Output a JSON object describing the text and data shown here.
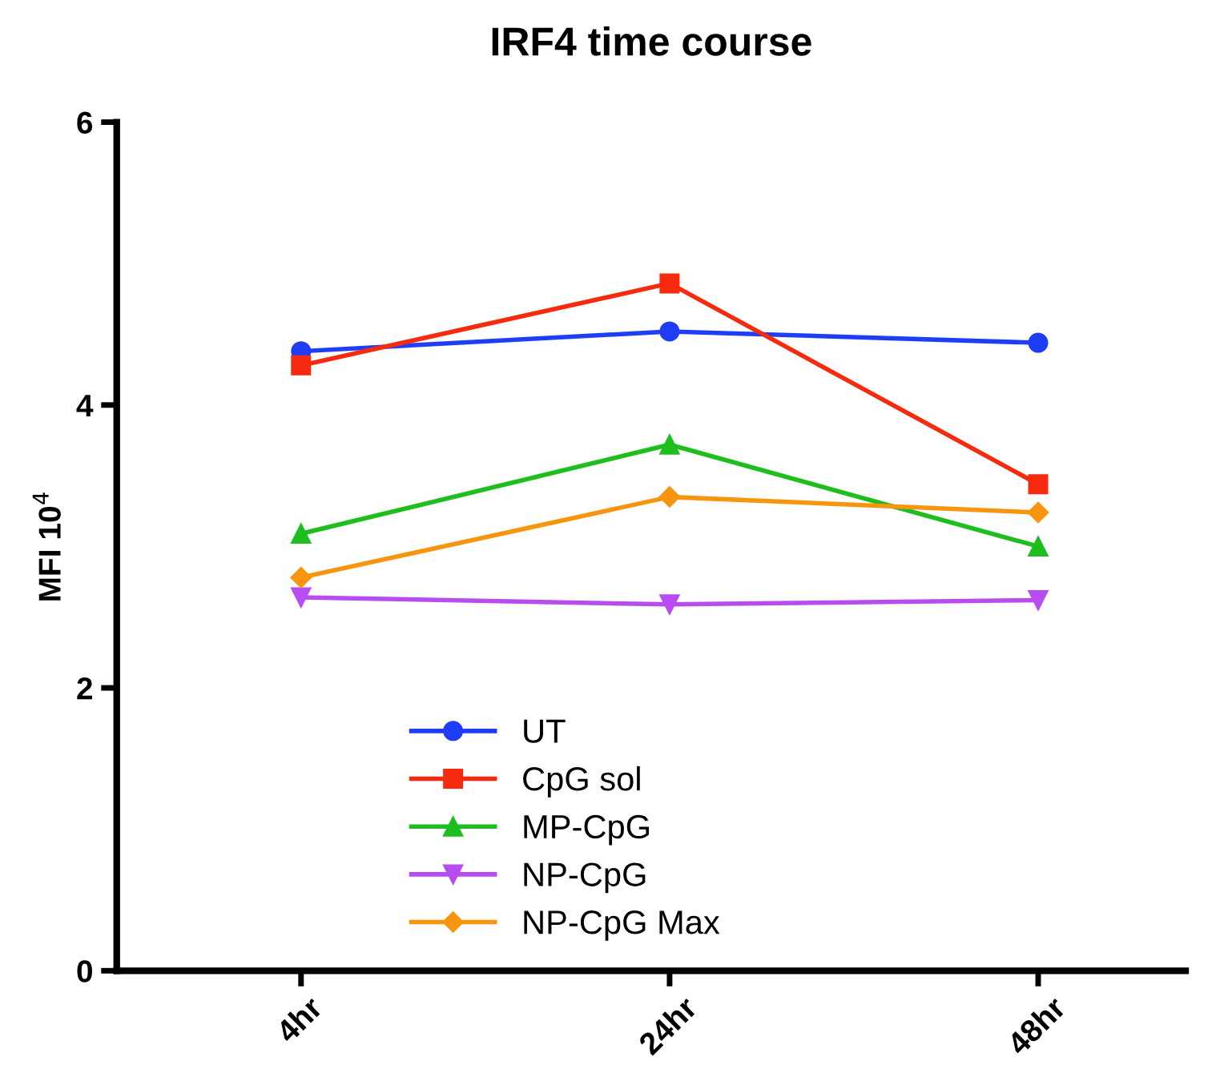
{
  "chart_data": {
    "type": "line",
    "title": "IRF4 time course",
    "ylabel": "MFI 10$^{4}$",
    "categories": [
      "4hr",
      "24hr",
      "48hr"
    ],
    "series": [
      {
        "name": "UT",
        "color": "#1f3df5",
        "values": [
          4.38,
          4.52,
          4.44
        ],
        "marker": "circle"
      },
      {
        "name": "CpG sol",
        "color": "#f52a0f",
        "values": [
          4.28,
          4.86,
          3.44
        ],
        "marker": "square"
      },
      {
        "name": "MP-CpG",
        "color": "#1dbe1d",
        "values": [
          3.09,
          3.72,
          3.0
        ],
        "marker": "triangle"
      },
      {
        "name": "NP-CpG",
        "color": "#b94cf0",
        "values": [
          2.64,
          2.59,
          2.62
        ],
        "marker": "triangle_down"
      },
      {
        "name": "NP-CpG Max",
        "color": "#f7950f",
        "values": [
          2.78,
          3.35,
          3.24
        ],
        "marker": "diamond"
      }
    ],
    "ylim": [
      0,
      6
    ],
    "yticks": [
      0,
      2,
      4,
      6
    ],
    "grid": false,
    "legend": "bottom",
    "line_style": "solid"
  }
}
